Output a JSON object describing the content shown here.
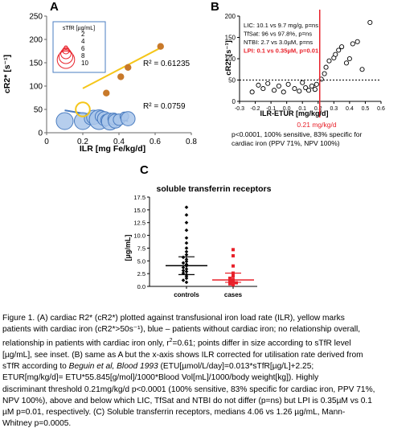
{
  "panel_labels": {
    "a": "A",
    "b": "B",
    "c": "C"
  },
  "colors": {
    "yellow": "#f5c61a",
    "blue_fill": "#a9c6ea",
    "blue_stroke": "#4a7cc0",
    "red": "#e8212a",
    "orange": "#c8792a",
    "grey": "#555555"
  },
  "chart_data": [
    {
      "type": "scatter",
      "panel": "A",
      "xlabel": "ILR [mg Fe/kg/d]",
      "ylabel": "cR2* [s⁻¹]",
      "xlim": [
        0,
        0.8
      ],
      "ylim": [
        0,
        250
      ],
      "x_ticks": [
        "0",
        "0.2",
        "0.4",
        "0.6",
        "0.8"
      ],
      "y_ticks": [
        "0",
        "50",
        "100",
        "150",
        "200",
        "250"
      ],
      "legend": {
        "title": "sTfR [µg/mL]",
        "entries": [
          "2",
          "4",
          "6",
          "8",
          "10"
        ],
        "placement": "top-left"
      },
      "series": [
        {
          "group": "cardiac iron",
          "points": [
            {
              "x": 0.2,
              "y": 50,
              "s": 4
            },
            {
              "x": 0.33,
              "y": 85,
              "s": 1
            },
            {
              "x": 0.41,
              "y": 120,
              "s": 1
            },
            {
              "x": 0.45,
              "y": 140,
              "s": 1
            },
            {
              "x": 0.63,
              "y": 185,
              "s": 1
            }
          ]
        },
        {
          "group": "no cardiac iron",
          "points": [
            {
              "x": 0.1,
              "y": 25,
              "s": 5
            },
            {
              "x": 0.2,
              "y": 25,
              "s": 5
            },
            {
              "x": 0.24,
              "y": 30,
              "s": 3
            },
            {
              "x": 0.26,
              "y": 33,
              "s": 4
            },
            {
              "x": 0.29,
              "y": 28,
              "s": 6
            },
            {
              "x": 0.3,
              "y": 35,
              "s": 3
            },
            {
              "x": 0.32,
              "y": 30,
              "s": 4
            },
            {
              "x": 0.33,
              "y": 27,
              "s": 3
            },
            {
              "x": 0.35,
              "y": 24,
              "s": 5
            },
            {
              "x": 0.37,
              "y": 30,
              "s": 3
            },
            {
              "x": 0.38,
              "y": 25,
              "s": 4
            },
            {
              "x": 0.4,
              "y": 28,
              "s": 3
            },
            {
              "x": 0.43,
              "y": 35,
              "s": 2
            },
            {
              "x": 0.45,
              "y": 30,
              "s": 4
            }
          ]
        }
      ],
      "trendlines": [
        {
          "group": "cardiac iron",
          "from": [
            0.2,
            95
          ],
          "to": [
            0.63,
            182
          ],
          "label": "R² = 0.61235"
        },
        {
          "group": "no cardiac iron",
          "from": [
            0.1,
            48
          ],
          "to": [
            0.45,
            25
          ],
          "label": "R² = 0.0759"
        }
      ]
    },
    {
      "type": "scatter",
      "panel": "B",
      "xlabel": "ILR-ETUR [mg/kg/d]",
      "ylabel": "cR2* [s⁻¹]",
      "xlim": [
        -0.3,
        0.6
      ],
      "ylim": [
        0,
        200
      ],
      "x_ticks": [
        "-0.3",
        "-0.2",
        "-0.1",
        "0.0",
        "0.1",
        "0.2",
        "0.3",
        "0.4",
        "0.5",
        "0.6"
      ],
      "y_ticks": [
        "0",
        "50",
        "100",
        "150",
        "200"
      ],
      "threshold_x": 0.21,
      "threshold_y": 50,
      "threshold_label": "0.21 mg/kg/d",
      "stats_lines": [
        "LIC: 10.1 vs 9.7 mg/g, p=ns",
        "TfSat: 96 vs 97.8%, p=ns",
        "NTBI: 2.7 vs 3.0µM, p=ns",
        "LPI: 0.1 vs 0.35µM, p=0.01"
      ],
      "note_lines": [
        "p<0.0001, 100% sensitive, 83% specific for",
        "cardiac iron (PPV 71%, NPV 100%)"
      ],
      "points": [
        {
          "x": -0.22,
          "y": 22
        },
        {
          "x": -0.18,
          "y": 38
        },
        {
          "x": -0.15,
          "y": 30
        },
        {
          "x": -0.12,
          "y": 42
        },
        {
          "x": -0.08,
          "y": 26
        },
        {
          "x": -0.05,
          "y": 36
        },
        {
          "x": -0.02,
          "y": 22
        },
        {
          "x": 0.01,
          "y": 40
        },
        {
          "x": 0.05,
          "y": 30
        },
        {
          "x": 0.08,
          "y": 24
        },
        {
          "x": 0.1,
          "y": 44
        },
        {
          "x": 0.12,
          "y": 32
        },
        {
          "x": 0.14,
          "y": 26
        },
        {
          "x": 0.16,
          "y": 36
        },
        {
          "x": 0.18,
          "y": 28
        },
        {
          "x": 0.19,
          "y": 40
        },
        {
          "x": 0.22,
          "y": 52
        },
        {
          "x": 0.24,
          "y": 65
        },
        {
          "x": 0.25,
          "y": 80
        },
        {
          "x": 0.27,
          "y": 95
        },
        {
          "x": 0.3,
          "y": 102
        },
        {
          "x": 0.31,
          "y": 110
        },
        {
          "x": 0.33,
          "y": 120
        },
        {
          "x": 0.35,
          "y": 128
        },
        {
          "x": 0.38,
          "y": 90
        },
        {
          "x": 0.4,
          "y": 100
        },
        {
          "x": 0.42,
          "y": 135
        },
        {
          "x": 0.45,
          "y": 140
        },
        {
          "x": 0.48,
          "y": 75
        },
        {
          "x": 0.53,
          "y": 185
        }
      ]
    },
    {
      "type": "scatter",
      "panel": "C",
      "title": "soluble transferrin receptors",
      "ylabel": "[µg/mL]",
      "ylim": [
        0,
        17.5
      ],
      "y_ticks": [
        "0.0",
        "2.5",
        "5.0",
        "7.5",
        "10.0",
        "12.5",
        "15.0",
        "17.5"
      ],
      "categories": [
        "controls",
        "cases"
      ],
      "medians": [
        4.06,
        1.26
      ],
      "iqr": [
        [
          2.3,
          5.8
        ],
        [
          0.8,
          2.6
        ]
      ],
      "values": [
        [
          0.8,
          1.2,
          1.6,
          2.0,
          2.3,
          2.6,
          2.9,
          3.1,
          3.4,
          3.7,
          4.0,
          4.3,
          4.6,
          4.9,
          5.3,
          5.7,
          6.2,
          6.8,
          7.5,
          8.5,
          9.5,
          11.0,
          12.5,
          14.0,
          15.5
        ],
        [
          0.3,
          0.5,
          0.7,
          0.9,
          1.1,
          1.3,
          1.6,
          2.0,
          2.6,
          4.0,
          6.0,
          7.2
        ]
      ]
    }
  ],
  "caption": {
    "l1": "Figure 1. (A) cardiac R2* (cR2*) plotted against transfusional iron load rate (ILR), yellow marks",
    "l2": "patients with cardiac iron (cR2*>50s⁻¹), blue – patients without cardiac iron; no relationship overall,",
    "l3a": "relationship in patients with cardiac iron only, r",
    "l3sup": "2",
    "l3b": "=0.61; points differ in size according to sTfR level",
    "l4": "[µg/mL], see inset. (B) same as A but the x-axis shows ILR corrected for utilisation rate derived from",
    "l5a": "sTfR according to ",
    "l5i": "Beguin et al, Blood 1993",
    "l5b": " (ETU[µmol/L/day]=0.013*sTfR[µg/L]+2.25;",
    "l6": "ETUR[mg/kg/d]= ETU*55.845[g/mol]/1000*Blood Vol[mL]/1000/body weight[kg]). Highly",
    "l7": "discriminant threshold 0.21mg/kg/d p<0.0001 (100% sensitive, 83% specific for cardiac iron, PPV 71%,",
    "l8": "NPV 100%), above and below which LIC, TfSat and NTBI do not differ (p=ns) but LPI is 0.35µM vs 0.1",
    "l9": "µM p=0.01, respectively. (C) Soluble transferrin receptors, medians 4.06 vs 1.26 µg/mL, Mann-",
    "l10": "Whitney p=0.0005."
  }
}
